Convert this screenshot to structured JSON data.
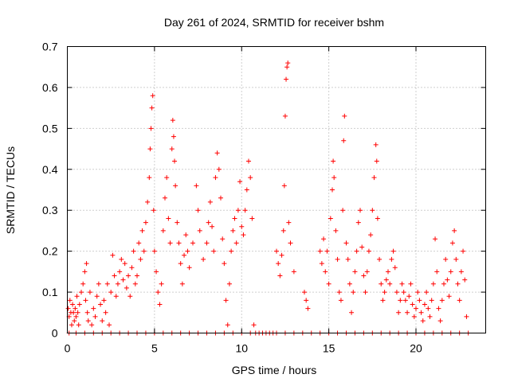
{
  "chart_data": {
    "type": "scatter",
    "title": "Day 261 of 2024, SRMTID for receiver bshm",
    "xlabel": "GPS time / hours",
    "ylabel": "SRMTID / TECUs",
    "xlim": [
      0,
      24
    ],
    "ylim": [
      0,
      0.7
    ],
    "xticks": [
      0,
      5,
      10,
      15,
      20
    ],
    "yticks": [
      0,
      0.1,
      0.2,
      0.3,
      0.4,
      0.5,
      0.6,
      0.7
    ],
    "xtick_labels": [
      "0",
      "5",
      "10",
      "15",
      "20"
    ],
    "ytick_labels": [
      "0",
      "0.1",
      "0.2",
      "0.3",
      "0.4",
      "0.5",
      "0.6",
      "0.7"
    ],
    "grid": true,
    "marker": "+",
    "color": "#ff0000",
    "series": [
      {
        "name": "SRMTID",
        "points": [
          [
            0.05,
            0.06
          ],
          [
            0.1,
            0.04
          ],
          [
            0.15,
            0.08
          ],
          [
            0.2,
            0.05
          ],
          [
            0.25,
            0.02
          ],
          [
            0.3,
            0.07
          ],
          [
            0.35,
            0.05
          ],
          [
            0.4,
            0.03
          ],
          [
            0.45,
            0.06
          ],
          [
            0.5,
            0.04
          ],
          [
            0.55,
            0.09
          ],
          [
            0.6,
            0.05
          ],
          [
            0.65,
            0.02
          ],
          [
            0.7,
            0.07
          ],
          [
            0.8,
            0.1
          ],
          [
            0.9,
            0.12
          ],
          [
            1.0,
            0.15
          ],
          [
            1.05,
            0.08
          ],
          [
            1.1,
            0.17
          ],
          [
            1.15,
            0.05
          ],
          [
            1.2,
            0.03
          ],
          [
            1.3,
            0.1
          ],
          [
            1.4,
            0.02
          ],
          [
            1.5,
            0.06
          ],
          [
            1.6,
            0.04
          ],
          [
            1.7,
            0.09
          ],
          [
            1.8,
            0.12
          ],
          [
            1.9,
            0.07
          ],
          [
            2.0,
            0.03
          ],
          [
            2.1,
            0.08
          ],
          [
            2.2,
            0.05
          ],
          [
            2.3,
            0.12
          ],
          [
            2.4,
            0.02
          ],
          [
            2.5,
            0.1
          ],
          [
            2.6,
            0.19
          ],
          [
            2.7,
            0.14
          ],
          [
            2.8,
            0.09
          ],
          [
            2.9,
            0.12
          ],
          [
            3.0,
            0.15
          ],
          [
            3.1,
            0.18
          ],
          [
            3.2,
            0.13
          ],
          [
            3.3,
            0.17
          ],
          [
            3.4,
            0.11
          ],
          [
            3.5,
            0.14
          ],
          [
            3.6,
            0.09
          ],
          [
            3.7,
            0.16
          ],
          [
            3.8,
            0.2
          ],
          [
            3.9,
            0.12
          ],
          [
            4.0,
            0.14
          ],
          [
            4.1,
            0.22
          ],
          [
            4.2,
            0.18
          ],
          [
            4.3,
            0.25
          ],
          [
            4.4,
            0.2
          ],
          [
            4.5,
            0.27
          ],
          [
            4.6,
            0.32
          ],
          [
            4.7,
            0.38
          ],
          [
            4.75,
            0.45
          ],
          [
            4.8,
            0.5
          ],
          [
            4.85,
            0.55
          ],
          [
            4.9,
            0.58
          ],
          [
            4.95,
            0.3
          ],
          [
            5.0,
            0.2
          ],
          [
            5.1,
            0.15
          ],
          [
            5.2,
            0.1
          ],
          [
            5.3,
            0.07
          ],
          [
            5.4,
            0.12
          ],
          [
            5.5,
            0.25
          ],
          [
            5.6,
            0.33
          ],
          [
            5.7,
            0.38
          ],
          [
            5.8,
            0.28
          ],
          [
            5.9,
            0.22
          ],
          [
            6.0,
            0.45
          ],
          [
            6.05,
            0.52
          ],
          [
            6.1,
            0.48
          ],
          [
            6.15,
            0.42
          ],
          [
            6.2,
            0.36
          ],
          [
            6.3,
            0.27
          ],
          [
            6.4,
            0.22
          ],
          [
            6.5,
            0.17
          ],
          [
            6.6,
            0.12
          ],
          [
            6.7,
            0.19
          ],
          [
            6.8,
            0.24
          ],
          [
            6.9,
            0.2
          ],
          [
            7.0,
            0.16
          ],
          [
            7.2,
            0.22
          ],
          [
            7.4,
            0.36
          ],
          [
            7.5,
            0.3
          ],
          [
            7.6,
            0.25
          ],
          [
            7.8,
            0.18
          ],
          [
            8.0,
            0.22
          ],
          [
            8.1,
            0.27
          ],
          [
            8.2,
            0.32
          ],
          [
            8.3,
            0.26
          ],
          [
            8.4,
            0.2
          ],
          [
            8.5,
            0.38
          ],
          [
            8.6,
            0.44
          ],
          [
            8.7,
            0.4
          ],
          [
            8.8,
            0.33
          ],
          [
            8.9,
            0.23
          ],
          [
            9.0,
            0.17
          ],
          [
            9.1,
            0.08
          ],
          [
            9.2,
            0.02
          ],
          [
            9.3,
            0.12
          ],
          [
            9.4,
            0.2
          ],
          [
            9.5,
            0.25
          ],
          [
            9.6,
            0.28
          ],
          [
            9.7,
            0.22
          ],
          [
            9.8,
            0.3
          ],
          [
            9.9,
            0.37
          ],
          [
            10.0,
            0.26
          ],
          [
            10.1,
            0.24
          ],
          [
            10.2,
            0.3
          ],
          [
            10.3,
            0.35
          ],
          [
            10.4,
            0.42
          ],
          [
            10.5,
            0.38
          ],
          [
            10.6,
            0.28
          ],
          [
            10.7,
            0.02
          ],
          [
            12.0,
            0.2
          ],
          [
            12.1,
            0.17
          ],
          [
            12.2,
            0.14
          ],
          [
            12.3,
            0.19
          ],
          [
            12.4,
            0.25
          ],
          [
            12.45,
            0.36
          ],
          [
            12.5,
            0.53
          ],
          [
            12.55,
            0.62
          ],
          [
            12.6,
            0.65
          ],
          [
            12.65,
            0.66
          ],
          [
            12.7,
            0.27
          ],
          [
            12.8,
            0.22
          ],
          [
            13.0,
            0.15
          ],
          [
            13.6,
            0.1
          ],
          [
            13.7,
            0.08
          ],
          [
            13.8,
            0.06
          ],
          [
            14.5,
            0.2
          ],
          [
            14.6,
            0.17
          ],
          [
            14.7,
            0.23
          ],
          [
            14.8,
            0.15
          ],
          [
            14.9,
            0.2
          ],
          [
            15.0,
            0.12
          ],
          [
            15.1,
            0.28
          ],
          [
            15.2,
            0.35
          ],
          [
            15.25,
            0.42
          ],
          [
            15.3,
            0.38
          ],
          [
            15.4,
            0.25
          ],
          [
            15.5,
            0.18
          ],
          [
            15.6,
            0.1
          ],
          [
            15.7,
            0.08
          ],
          [
            15.8,
            0.3
          ],
          [
            15.85,
            0.47
          ],
          [
            15.9,
            0.53
          ],
          [
            16.0,
            0.22
          ],
          [
            16.1,
            0.18
          ],
          [
            16.2,
            0.12
          ],
          [
            16.3,
            0.05
          ],
          [
            16.4,
            0.1
          ],
          [
            16.5,
            0.15
          ],
          [
            16.6,
            0.2
          ],
          [
            16.7,
            0.27
          ],
          [
            16.8,
            0.3
          ],
          [
            16.9,
            0.21
          ],
          [
            17.0,
            0.14
          ],
          [
            17.1,
            0.1
          ],
          [
            17.2,
            0.15
          ],
          [
            17.3,
            0.2
          ],
          [
            17.4,
            0.24
          ],
          [
            17.5,
            0.3
          ],
          [
            17.6,
            0.38
          ],
          [
            17.7,
            0.46
          ],
          [
            17.75,
            0.42
          ],
          [
            17.8,
            0.28
          ],
          [
            17.9,
            0.18
          ],
          [
            18.0,
            0.12
          ],
          [
            18.1,
            0.08
          ],
          [
            18.2,
            0.1
          ],
          [
            18.3,
            0.13
          ],
          [
            18.4,
            0.15
          ],
          [
            18.5,
            0.12
          ],
          [
            18.6,
            0.18
          ],
          [
            18.7,
            0.2
          ],
          [
            18.8,
            0.16
          ],
          [
            18.9,
            0.1
          ],
          [
            19.0,
            0.05
          ],
          [
            19.1,
            0.08
          ],
          [
            19.2,
            0.12
          ],
          [
            19.3,
            0.1
          ],
          [
            19.4,
            0.08
          ],
          [
            19.5,
            0.05
          ],
          [
            19.6,
            0.09
          ],
          [
            19.7,
            0.12
          ],
          [
            19.8,
            0.07
          ],
          [
            19.9,
            0.04
          ],
          [
            20.0,
            0.06
          ],
          [
            20.1,
            0.1
          ],
          [
            20.2,
            0.08
          ],
          [
            20.3,
            0.05
          ],
          [
            20.4,
            0.03
          ],
          [
            20.5,
            0.07
          ],
          [
            20.6,
            0.1
          ],
          [
            20.7,
            0.06
          ],
          [
            20.8,
            0.04
          ],
          [
            20.9,
            0.08
          ],
          [
            21.0,
            0.12
          ],
          [
            21.1,
            0.23
          ],
          [
            21.2,
            0.15
          ],
          [
            21.3,
            0.06
          ],
          [
            21.4,
            0.03
          ],
          [
            21.5,
            0.08
          ],
          [
            21.6,
            0.12
          ],
          [
            21.7,
            0.18
          ],
          [
            21.8,
            0.13
          ],
          [
            21.9,
            0.09
          ],
          [
            22.0,
            0.15
          ],
          [
            22.1,
            0.22
          ],
          [
            22.2,
            0.25
          ],
          [
            22.3,
            0.18
          ],
          [
            22.4,
            0.12
          ],
          [
            22.5,
            0.08
          ],
          [
            22.6,
            0.15
          ],
          [
            22.7,
            0.2
          ],
          [
            22.8,
            0.13
          ],
          [
            22.9,
            0.04
          ]
        ],
        "zeros": [
          0.1,
          0.5,
          1.0,
          1.5,
          2.0,
          2.5,
          3.0,
          3.5,
          4.0,
          4.5,
          5.0,
          5.5,
          6.0,
          6.5,
          7.0,
          7.5,
          8.0,
          8.5,
          9.0,
          9.5,
          10.0,
          10.5,
          10.8,
          11.0,
          11.2,
          11.4,
          11.6,
          11.8,
          12.0,
          12.5,
          13.0,
          13.5,
          14.0,
          14.5,
          15.0,
          15.5,
          16.0,
          16.5,
          17.0,
          17.5,
          18.0,
          18.5,
          19.0,
          19.5,
          20.0,
          20.5,
          21.0,
          21.5,
          22.0,
          22.5,
          23.0
        ]
      }
    ]
  }
}
